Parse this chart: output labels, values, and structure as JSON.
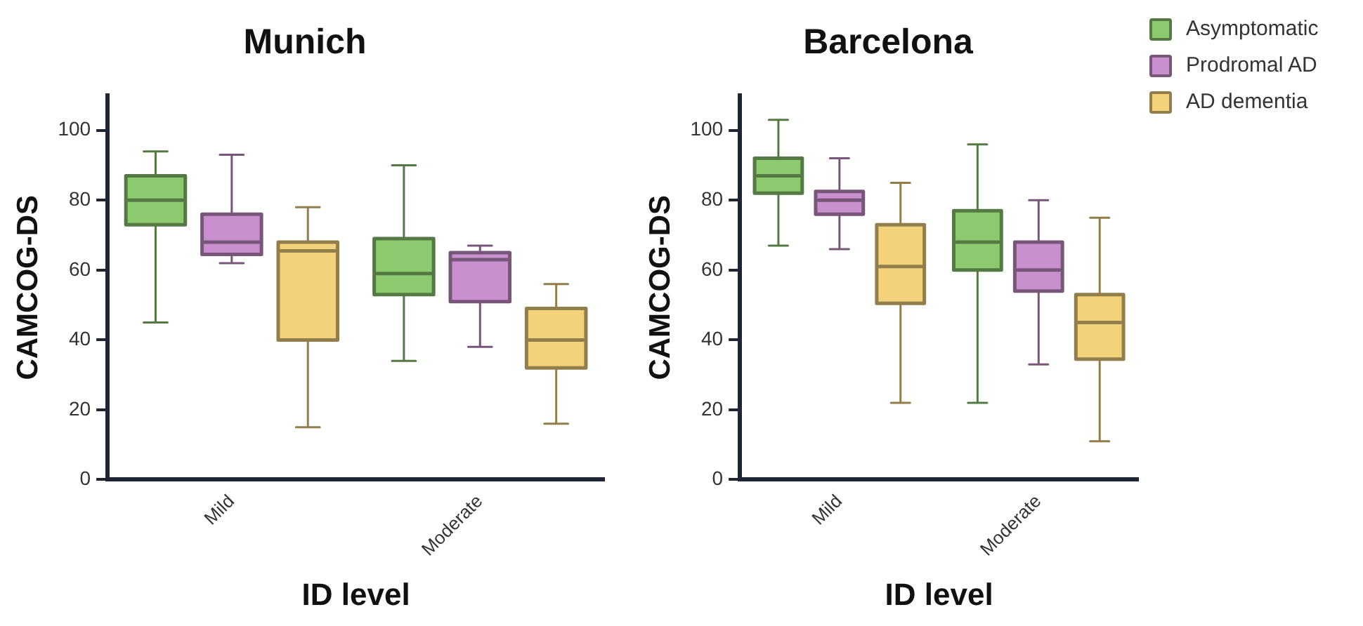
{
  "chart_data": [
    {
      "type": "box",
      "title": "Munich",
      "xlabel": "ID level",
      "ylabel": "CAMCOG-DS",
      "categories": [
        "Mild",
        "Moderate"
      ],
      "ylim": [
        0,
        110
      ],
      "yticks": [
        0,
        20,
        40,
        60,
        80,
        100
      ],
      "grid": false,
      "legend": false,
      "series": [
        {
          "color": "#8cc96f",
          "boxes": [
            {
              "low": 45,
              "q1": 73,
              "median": 80,
              "q3": 87,
              "high": 94
            },
            {
              "low": 34,
              "q1": 53,
              "median": 59,
              "q3": 69,
              "high": 90
            }
          ]
        },
        {
          "color": "#c890cc",
          "boxes": [
            {
              "low": 62,
              "q1": 64.5,
              "median": 68,
              "q3": 76,
              "high": 93
            },
            {
              "low": 38,
              "q1": 51,
              "median": 63,
              "q3": 65,
              "high": 67
            }
          ]
        },
        {
          "color": "#f3d27c",
          "boxes": [
            {
              "low": 15,
              "q1": 40,
              "median": 65.5,
              "q3": 68,
              "high": 78
            },
            {
              "low": 16,
              "q1": 32,
              "median": 40,
              "q3": 49,
              "high": 56
            }
          ]
        }
      ]
    },
    {
      "type": "box",
      "title": "Barcelona",
      "xlabel": "ID level",
      "ylabel": "CAMCOG-DS",
      "categories": [
        "Mild",
        "Moderate"
      ],
      "ylim": [
        0,
        110
      ],
      "yticks": [
        0,
        20,
        40,
        60,
        80,
        100
      ],
      "grid": false,
      "legend": "top right",
      "series": [
        {
          "name": "Asymptomatic",
          "color": "#8cc96f",
          "boxes": [
            {
              "low": 67,
              "q1": 82,
              "median": 87,
              "q3": 92,
              "high": 103
            },
            {
              "low": 22,
              "q1": 60,
              "median": 68,
              "q3": 77,
              "high": 96
            }
          ]
        },
        {
          "name": "Prodromal AD",
          "color": "#c890cc",
          "boxes": [
            {
              "low": 66,
              "q1": 76,
              "median": 80,
              "q3": 82.5,
              "high": 92
            },
            {
              "low": 33,
              "q1": 54,
              "median": 60,
              "q3": 68,
              "high": 80
            }
          ]
        },
        {
          "name": "AD dementia",
          "color": "#f3d27c",
          "boxes": [
            {
              "low": 22,
              "q1": 50.5,
              "median": 61,
              "q3": 73,
              "high": 85
            },
            {
              "low": 11,
              "q1": 34.5,
              "median": 45,
              "q3": 53,
              "high": 75
            }
          ]
        }
      ]
    }
  ]
}
